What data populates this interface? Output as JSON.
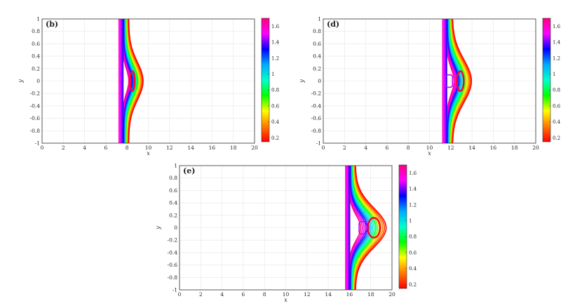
{
  "chart_data": [
    {
      "type": "contour",
      "panel_label": "(b)",
      "xlabel": "x",
      "ylabel": "y",
      "xlim": [
        0,
        20
      ],
      "ylim": [
        -1,
        1
      ],
      "xticks": [
        "0",
        "2",
        "4",
        "6",
        "8",
        "10",
        "12",
        "14",
        "16",
        "18",
        "20"
      ],
      "yticks": [
        "1",
        "0.8",
        "0.6",
        "0.4",
        "0.2",
        "0",
        "-0.2",
        "-0.4",
        "-0.6",
        "-0.8",
        "-1"
      ],
      "grid": true,
      "colorbar": {
        "ticks": [
          "1.6",
          "1.4",
          "1.2",
          "1",
          "0.8",
          "0.6",
          "0.4",
          "0.2"
        ],
        "range": [
          0.15,
          1.7
        ]
      },
      "front_x": 7.6,
      "bulge_x": 8.5,
      "bulge_halfheight": 0.32,
      "core_vortex": false
    },
    {
      "type": "contour",
      "panel_label": "(d)",
      "xlabel": "x",
      "ylabel": "y",
      "xlim": [
        0,
        20
      ],
      "ylim": [
        -1,
        1
      ],
      "xticks": [
        "0",
        "2",
        "4",
        "6",
        "8",
        "10",
        "12",
        "14",
        "16",
        "18",
        "20"
      ],
      "yticks": [
        "1",
        "0.8",
        "0.6",
        "0.4",
        "0.2",
        "0",
        "-0.2",
        "-0.4",
        "-0.6",
        "-0.8",
        "-1"
      ],
      "grid": true,
      "colorbar": {
        "ticks": [
          "1.6",
          "1.4",
          "1.2",
          "1",
          "0.8",
          "0.6",
          "0.4",
          "0.2"
        ],
        "range": [
          0.15,
          1.7
        ]
      },
      "front_x": 11.6,
      "bulge_x": 12.9,
      "bulge_halfheight": 0.36,
      "core_vortex": true
    },
    {
      "type": "contour",
      "panel_label": "(e)",
      "xlabel": "x",
      "ylabel": "y",
      "xlim": [
        0,
        20
      ],
      "ylim": [
        -1,
        1
      ],
      "xticks": [
        "0",
        "2",
        "4",
        "6",
        "8",
        "10",
        "12",
        "14",
        "16",
        "18",
        "20"
      ],
      "yticks": [
        "1",
        "0.8",
        "0.6",
        "0.4",
        "0.2",
        "0",
        "-0.2",
        "-0.4",
        "-0.6",
        "-0.8",
        "-1"
      ],
      "grid": true,
      "colorbar": {
        "ticks": [
          "1.6",
          "1.4",
          "1.2",
          "1",
          "0.8",
          "0.6",
          "0.4",
          "0.2"
        ],
        "range": [
          0.15,
          1.7
        ]
      },
      "front_x": 16.0,
      "bulge_x": 18.3,
      "bulge_halfheight": 0.33,
      "core_vortex": true
    }
  ],
  "colormap": [
    "#ff0000",
    "#ff7a00",
    "#ffff00",
    "#00ff00",
    "#00ffcc",
    "#00aaff",
    "#0000ff",
    "#ff00ff",
    "#ff0080"
  ]
}
